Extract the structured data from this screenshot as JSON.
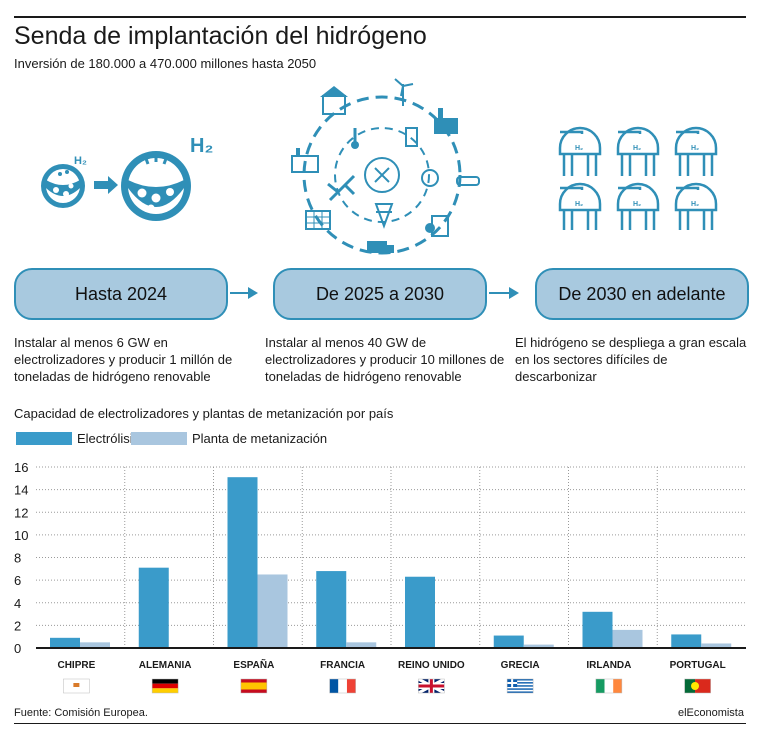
{
  "header": {
    "title": "Senda de implantación del hidrógeno",
    "subtitle": "Inversión de 180.000 a 470.000 millones hasta 2050"
  },
  "illustrations": {
    "molecule_label_small": "H₂",
    "molecule_label_large": "H₂",
    "tank_label": "H₂"
  },
  "timeline": [
    {
      "label": "Hasta 2024",
      "description": "Instalar al menos 6 GW en electrolizadores y producir 1 millón de toneladas de hidrógeno renovable"
    },
    {
      "label": "De 2025 a 2030",
      "description": "Instalar al menos 40 GW de electrolizadores y producir 10 millones de toneladas de hidrógeno renovable"
    },
    {
      "label": "De 2030 en adelante",
      "description": "El hidrógeno se despliega a gran escala en los sectores difíciles de descarbonizar"
    }
  ],
  "colors": {
    "accent": "#2f8fb7",
    "series_electrolisis": "#3a9bca",
    "series_metanizacion": "#a9c6df",
    "stage_fill": "#a8c9df"
  },
  "chart_data": {
    "type": "bar",
    "title": "Capacidad de electrolizadores y plantas de metanización por país",
    "categories": [
      "CHIPRE",
      "ALEMANIA",
      "ESPAÑA",
      "FRANCIA",
      "REINO UNIDO",
      "GRECIA",
      "IRLANDA",
      "PORTUGAL"
    ],
    "series": [
      {
        "name": "Electrólisis",
        "color": "#3a9bca",
        "values": [
          0.9,
          7.1,
          15.1,
          6.8,
          6.3,
          1.1,
          3.2,
          1.2
        ]
      },
      {
        "name": "Planta de metanización",
        "color": "#a9c6df",
        "values": [
          0.5,
          0,
          6.5,
          0.5,
          0,
          0.3,
          1.6,
          0.4
        ]
      }
    ],
    "ylim": [
      0,
      16
    ],
    "yticks": [
      0,
      2,
      4,
      6,
      8,
      10,
      12,
      14,
      16
    ],
    "grid": true,
    "legend": "top-left",
    "flags": [
      "cyprus-flag",
      "germany-flag",
      "spain-flag",
      "france-flag",
      "uk-flag",
      "greece-flag",
      "ireland-flag",
      "portugal-flag"
    ]
  },
  "footer": {
    "source": "Fuente: Comisión Europea.",
    "brand": "elEconomista"
  }
}
